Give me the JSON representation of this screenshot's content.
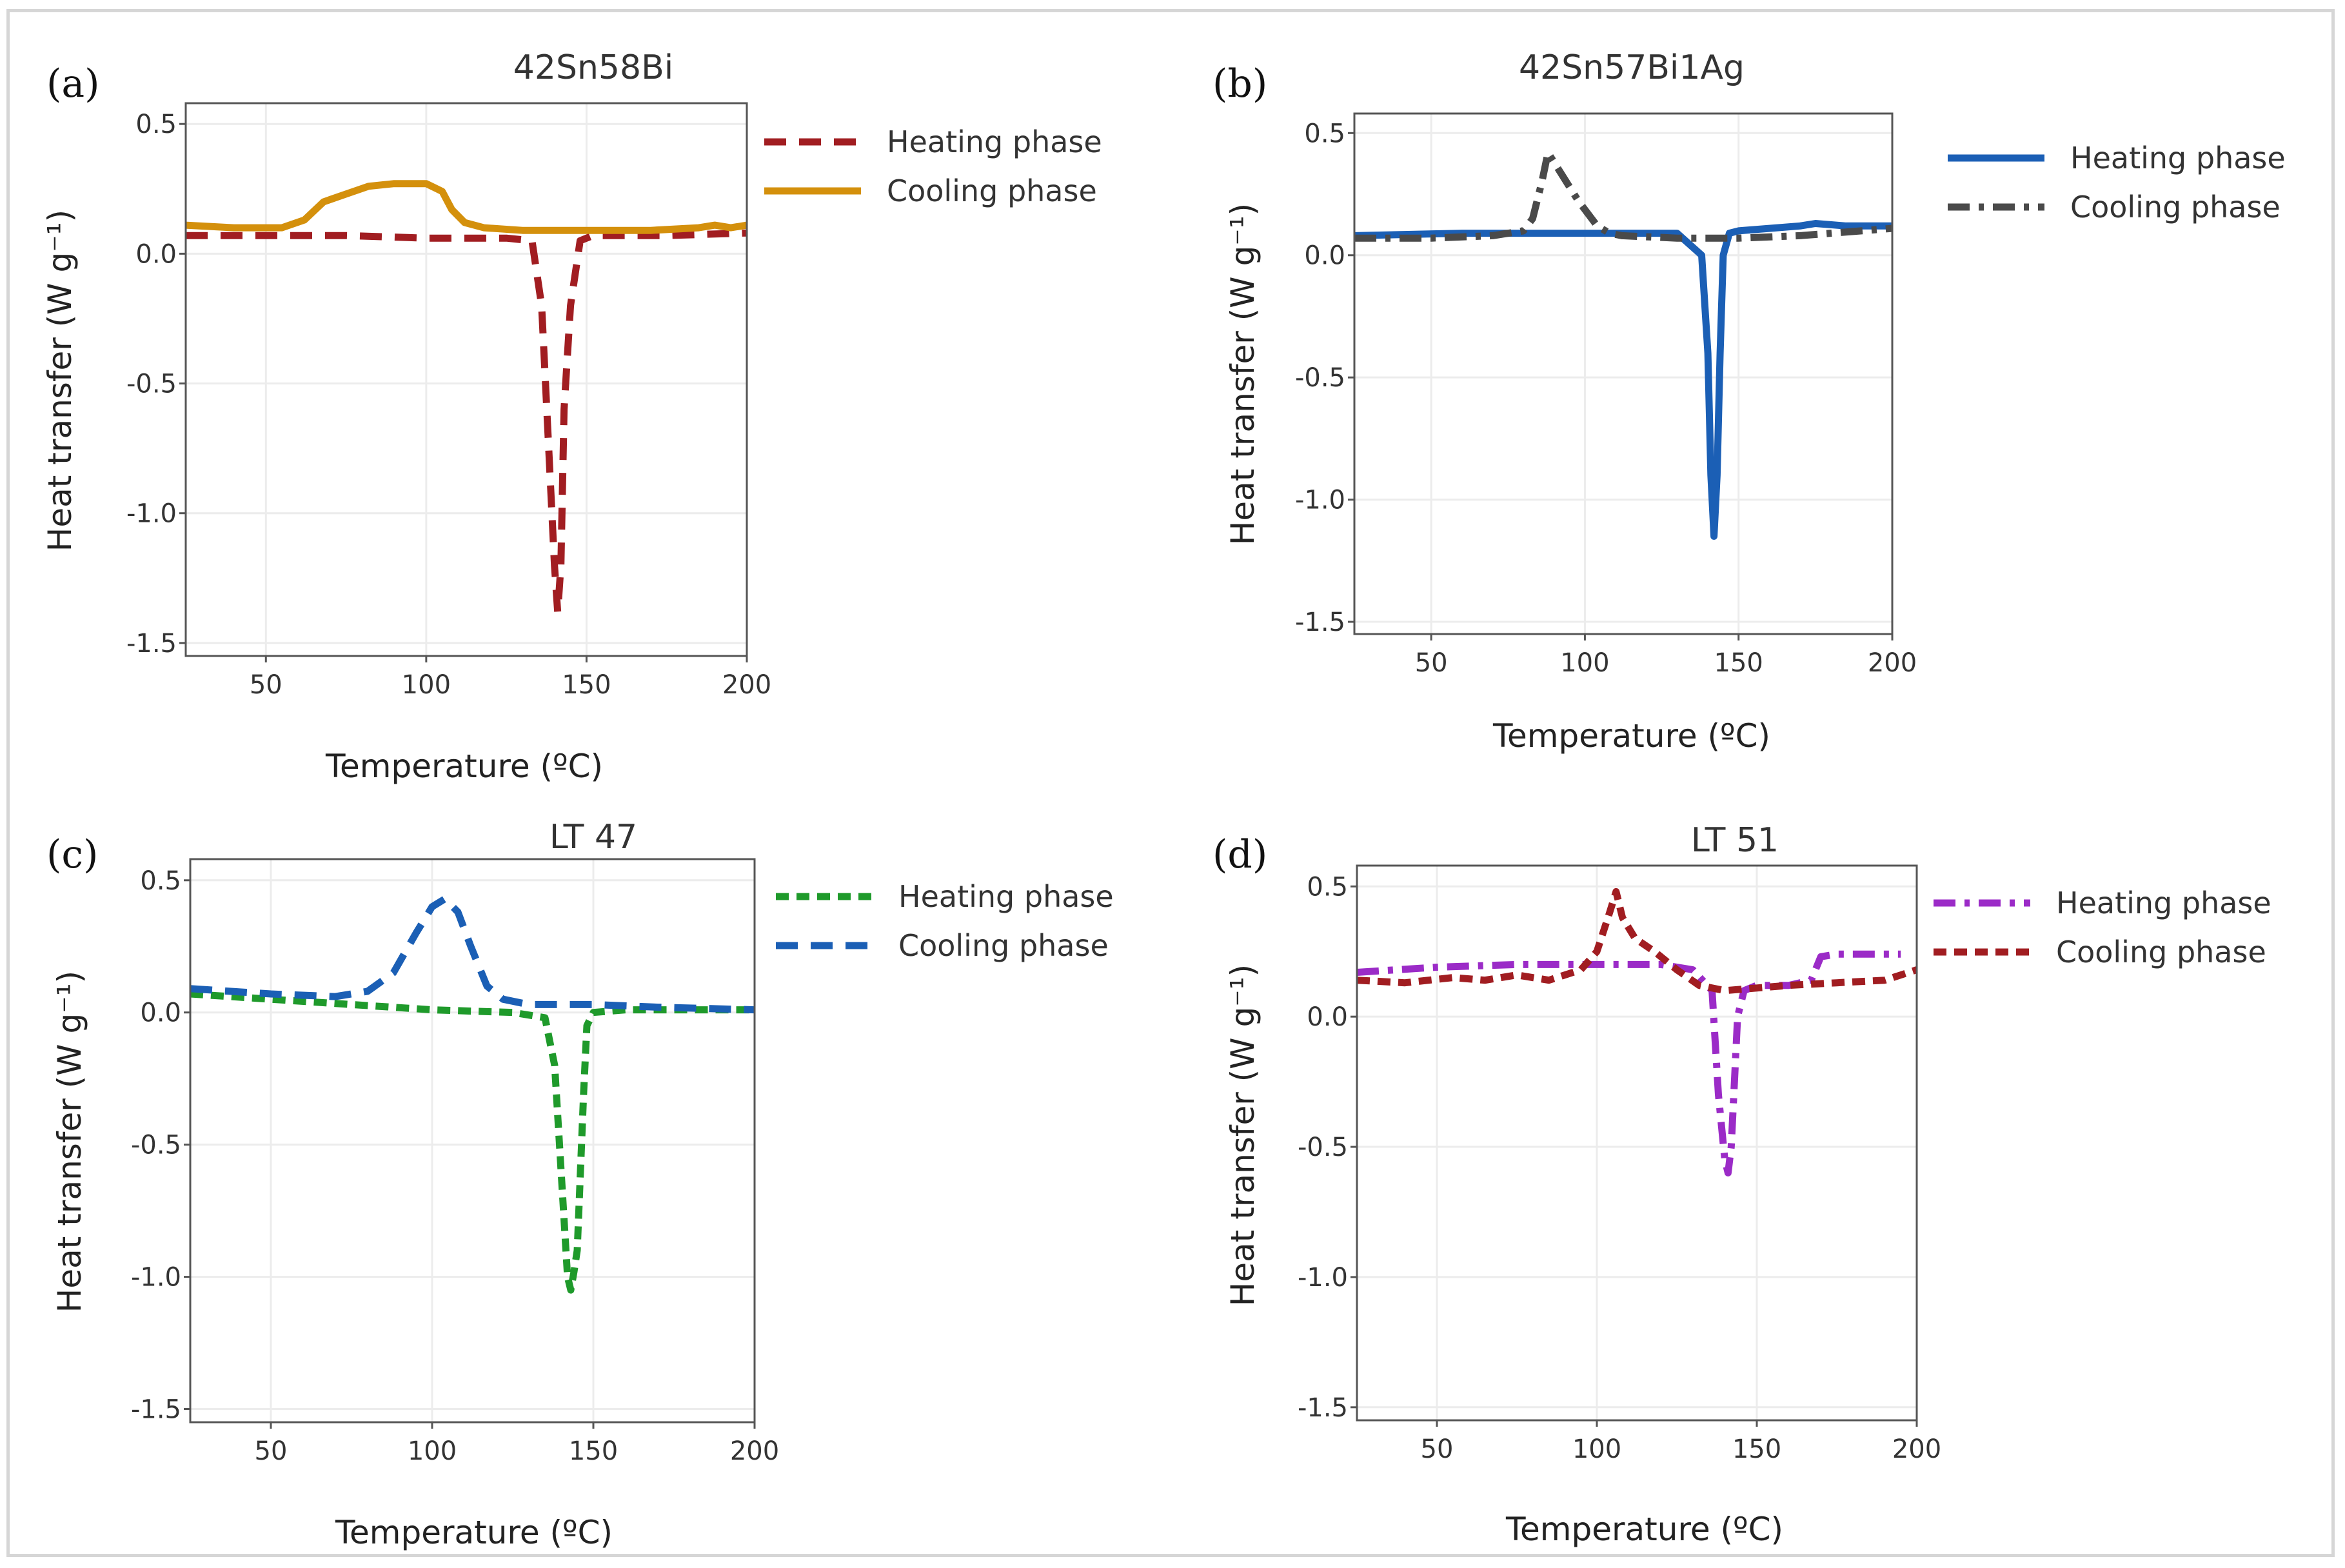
{
  "chart_data": [
    {
      "id": "a",
      "panel_label": "(a)",
      "type": "line",
      "title": "42Sn58Bi",
      "xlabel": "Temperature (ºC)",
      "ylabel": "Heat transfer (W g⁻¹)",
      "xlim": [
        25,
        200
      ],
      "ylim": [
        -1.55,
        0.58
      ],
      "xticks": [
        50,
        100,
        150,
        200
      ],
      "yticks": [
        0.5,
        0.0,
        -0.5,
        -1.0,
        -1.5
      ],
      "ytick_labels": [
        "0.5",
        "0.0",
        "-0.5",
        "-1.0",
        "-1.5"
      ],
      "grid": true,
      "legend": "right",
      "series": [
        {
          "name": "Heating phase",
          "color": "#a11d21",
          "dash": "long-dash",
          "x": [
            25,
            50,
            75,
            100,
            125,
            133,
            136,
            138,
            140,
            141,
            142,
            143,
            145,
            148,
            152,
            175,
            200
          ],
          "y": [
            0.07,
            0.07,
            0.07,
            0.06,
            0.06,
            0.05,
            -0.2,
            -0.7,
            -1.2,
            -1.38,
            -1.2,
            -0.6,
            -0.2,
            0.05,
            0.07,
            0.07,
            0.08
          ]
        },
        {
          "name": "Cooling phase",
          "color": "#d4900c",
          "dash": "solid",
          "x": [
            25,
            40,
            55,
            62,
            68,
            75,
            82,
            90,
            100,
            105,
            108,
            112,
            118,
            130,
            150,
            170,
            185,
            190,
            195,
            200
          ],
          "y": [
            0.11,
            0.1,
            0.1,
            0.13,
            0.2,
            0.23,
            0.26,
            0.27,
            0.27,
            0.24,
            0.17,
            0.12,
            0.1,
            0.09,
            0.09,
            0.09,
            0.1,
            0.11,
            0.1,
            0.11
          ]
        }
      ]
    },
    {
      "id": "b",
      "panel_label": "(b)",
      "type": "line",
      "title": "42Sn57Bi1Ag",
      "xlabel": "Temperature (ºC)",
      "ylabel": "Heat transfer (W g⁻¹)",
      "xlim": [
        25,
        200
      ],
      "ylim": [
        -1.55,
        0.58
      ],
      "xticks": [
        50,
        100,
        150,
        200
      ],
      "yticks": [
        0.5,
        0.0,
        -0.5,
        -1.0,
        -1.5
      ],
      "ytick_labels": [
        "0.5",
        "0.0",
        "-0.5",
        "-1.0",
        "-1.5"
      ],
      "grid": true,
      "legend": "right",
      "series": [
        {
          "name": "Heating phase",
          "color": "#1b5fb5",
          "dash": "solid",
          "x": [
            25,
            60,
            100,
            130,
            138,
            140,
            141,
            142,
            143,
            144,
            145,
            147,
            150,
            160,
            170,
            175,
            185,
            200
          ],
          "y": [
            0.08,
            0.09,
            0.09,
            0.09,
            0.0,
            -0.4,
            -0.9,
            -1.15,
            -0.9,
            -0.4,
            0.0,
            0.09,
            0.1,
            0.11,
            0.12,
            0.13,
            0.12,
            0.12
          ]
        },
        {
          "name": "Cooling phase",
          "color": "#4a4a4a",
          "dash": "dash-dot",
          "x": [
            25,
            50,
            70,
            80,
            83,
            86,
            88,
            90,
            94,
            98,
            104,
            108,
            112,
            130,
            150,
            170,
            200
          ],
          "y": [
            0.07,
            0.07,
            0.08,
            0.1,
            0.15,
            0.3,
            0.42,
            0.38,
            0.3,
            0.22,
            0.12,
            0.09,
            0.08,
            0.07,
            0.07,
            0.08,
            0.11
          ]
        }
      ]
    },
    {
      "id": "c",
      "panel_label": "(c)",
      "type": "line",
      "title": "LT 47",
      "xlabel": "Temperature (ºC)",
      "ylabel": "Heat transfer (W g⁻¹)",
      "xlim": [
        25,
        200
      ],
      "ylim": [
        -1.55,
        0.58
      ],
      "xticks": [
        50,
        100,
        150,
        200
      ],
      "yticks": [
        0.5,
        0.0,
        -0.5,
        -1.0,
        -1.5
      ],
      "ytick_labels": [
        "0.5",
        "0.0",
        "-0.5",
        "-1.0",
        "-1.5"
      ],
      "grid": true,
      "legend": "right",
      "series": [
        {
          "name": "Heating phase",
          "color": "#1f9a2b",
          "dash": "short-dash",
          "x": [
            25,
            50,
            75,
            100,
            125,
            135,
            138,
            140,
            142,
            143,
            144,
            145,
            146,
            147,
            148,
            150,
            160,
            200
          ],
          "y": [
            0.07,
            0.05,
            0.03,
            0.01,
            0.0,
            -0.02,
            -0.2,
            -0.6,
            -1.0,
            -1.05,
            -0.98,
            -0.9,
            -0.6,
            -0.3,
            -0.05,
            0.0,
            0.01,
            0.01
          ]
        },
        {
          "name": "Cooling phase",
          "color": "#1b5fb5",
          "dash": "long-dash",
          "x": [
            25,
            50,
            70,
            80,
            88,
            95,
            100,
            104,
            108,
            112,
            117,
            122,
            130,
            150,
            170,
            200
          ],
          "y": [
            0.09,
            0.07,
            0.06,
            0.08,
            0.15,
            0.3,
            0.4,
            0.43,
            0.38,
            0.25,
            0.1,
            0.05,
            0.03,
            0.03,
            0.02,
            0.01
          ]
        }
      ]
    },
    {
      "id": "d",
      "panel_label": "(d)",
      "type": "line",
      "title": "LT 51",
      "xlabel": "Temperature (ºC)",
      "ylabel": "Heat transfer (W g⁻¹)",
      "xlim": [
        25,
        200
      ],
      "ylim": [
        -1.55,
        0.58
      ],
      "xticks": [
        50,
        100,
        150,
        200
      ],
      "yticks": [
        0.5,
        0.0,
        -0.5,
        -1.0,
        -1.5
      ],
      "ytick_labels": [
        "0.5",
        "0.0",
        "-0.5",
        "-1.0",
        "-1.5"
      ],
      "grid": true,
      "legend": "right",
      "series": [
        {
          "name": "Heating phase",
          "color": "#9b2bc7",
          "dash": "dash-dot",
          "x": [
            25,
            50,
            75,
            100,
            120,
            130,
            136,
            138,
            140,
            141,
            142,
            143,
            144,
            146,
            150,
            160,
            167,
            170,
            175,
            195
          ],
          "y": [
            0.17,
            0.19,
            0.2,
            0.2,
            0.2,
            0.18,
            0.1,
            -0.3,
            -0.55,
            -0.6,
            -0.5,
            -0.25,
            0.0,
            0.1,
            0.12,
            0.12,
            0.14,
            0.23,
            0.24,
            0.24
          ]
        },
        {
          "name": "Cooling phase",
          "color": "#a11d21",
          "dash": "short-dash",
          "x": [
            25,
            40,
            55,
            65,
            75,
            85,
            95,
            100,
            104,
            106,
            108,
            112,
            118,
            125,
            132,
            140,
            150,
            160,
            175,
            190,
            200
          ],
          "y": [
            0.14,
            0.13,
            0.15,
            0.14,
            0.16,
            0.14,
            0.18,
            0.25,
            0.4,
            0.48,
            0.38,
            0.3,
            0.25,
            0.18,
            0.12,
            0.1,
            0.11,
            0.12,
            0.13,
            0.14,
            0.18
          ]
        }
      ]
    }
  ]
}
